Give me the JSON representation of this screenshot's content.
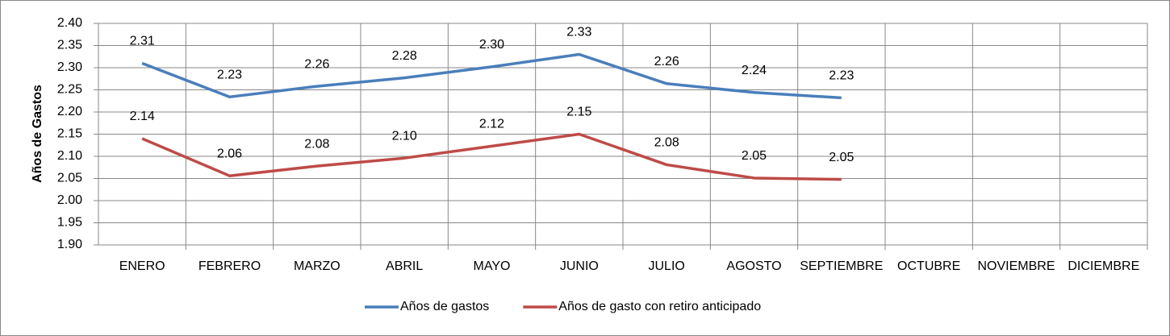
{
  "chart_data": {
    "type": "line",
    "y_label": "Años de Gastos",
    "categories": [
      "ENERO",
      "FEBRERO",
      "MARZO",
      "ABRIL",
      "MAYO",
      "JUNIO",
      "JULIO",
      "AGOSTO",
      "SEPTIEMBRE",
      "OCTUBRE",
      "NOVIEMBRE",
      "DICIEMBRE"
    ],
    "series": [
      {
        "name": "Años de gastos",
        "color": "#4a7ebb",
        "values": [
          2.31,
          2.234,
          2.258,
          2.277,
          2.302,
          2.33,
          2.264,
          2.244,
          2.232,
          null,
          null,
          null
        ],
        "value_labels": [
          "2.31",
          "2.23",
          "2.26",
          "2.28",
          "2.30",
          "2.33",
          "2.26",
          "2.24",
          "2.23",
          null,
          null,
          null
        ]
      },
      {
        "name": "Años de gasto con retiro anticipado",
        "color": "#be4b48",
        "values": [
          2.14,
          2.056,
          2.078,
          2.096,
          2.123,
          2.15,
          2.081,
          2.051,
          2.048,
          null,
          null,
          null
        ],
        "value_labels": [
          "2.14",
          "2.06",
          "2.08",
          "2.10",
          "2.12",
          "2.15",
          "2.08",
          "2.05",
          "2.05",
          null,
          null,
          null
        ]
      }
    ],
    "ylim": [
      1.9,
      2.4
    ],
    "yticks": [
      {
        "value": 1.9,
        "label": "1.90"
      },
      1.95,
      {
        "value": 2.0,
        "label": "2.00"
      },
      2.05,
      {
        "value": 2.1,
        "label": "2.10"
      },
      2.15,
      {
        "value": 2.2,
        "label": "2.20"
      },
      2.25,
      {
        "value": 2.3,
        "label": "2.30"
      },
      2.35,
      {
        "value": 2.4,
        "label": "2.40"
      }
    ],
    "grid": true,
    "legend": "bottom"
  }
}
